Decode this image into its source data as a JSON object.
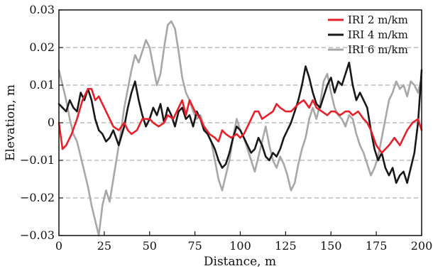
{
  "chart_data": {
    "type": "line",
    "title": "",
    "xlabel": "Distance, m",
    "ylabel": "Elevation, m",
    "xlim": [
      0,
      200
    ],
    "ylim": [
      -0.03,
      0.03
    ],
    "x_ticks": [
      0,
      25,
      50,
      75,
      100,
      125,
      150,
      175,
      200
    ],
    "x_tick_labels": [
      "0",
      "25",
      "50",
      "75",
      "100",
      "125",
      "150",
      "175",
      "200"
    ],
    "y_ticks": [
      -0.03,
      -0.02,
      -0.01,
      0,
      0.01,
      0.02,
      0.03
    ],
    "y_tick_labels": [
      "−0.03",
      "−0.02",
      "−0.01",
      "0",
      "0.01",
      "0.02",
      "0.03"
    ],
    "grid": "horizontal dashed",
    "legend_position": "top-right",
    "series": [
      {
        "name": "IRI 2 m/km",
        "color": "#e8202a",
        "x": [
          0,
          2,
          4,
          7,
          10,
          13,
          16,
          18,
          20,
          22,
          25,
          28,
          30,
          33,
          36,
          38,
          40,
          43,
          46,
          48,
          50,
          52,
          55,
          58,
          60,
          63,
          66,
          68,
          70,
          72,
          75,
          78,
          80,
          83,
          86,
          88,
          90,
          92,
          95,
          98,
          100,
          102,
          105,
          108,
          110,
          112,
          115,
          118,
          120,
          122,
          125,
          128,
          130,
          132,
          135,
          138,
          140,
          142,
          145,
          148,
          150,
          152,
          155,
          158,
          160,
          162,
          165,
          168,
          170,
          172,
          175,
          178,
          180,
          182,
          185,
          188,
          190,
          192,
          195,
          198,
          200
        ],
        "y": [
          0.0,
          -0.007,
          -0.006,
          -0.003,
          0.001,
          0.006,
          0.009,
          0.009,
          0.006,
          0.007,
          0.004,
          0.001,
          -0.001,
          -0.002,
          0.0,
          -0.002,
          -0.003,
          -0.002,
          0.001,
          0.001,
          0.001,
          0.0,
          -0.001,
          0.0,
          0.002,
          0.001,
          0.004,
          0.006,
          0.002,
          0.006,
          0.003,
          0.001,
          -0.001,
          -0.003,
          -0.004,
          -0.005,
          -0.002,
          -0.003,
          -0.004,
          -0.003,
          -0.004,
          -0.003,
          0.0,
          0.003,
          0.003,
          0.001,
          0.002,
          0.003,
          0.005,
          0.004,
          0.003,
          0.003,
          0.004,
          0.005,
          0.006,
          0.004,
          0.006,
          0.004,
          0.003,
          0.002,
          0.003,
          0.003,
          0.002,
          0.003,
          0.003,
          0.002,
          0.003,
          0.001,
          0.0,
          -0.002,
          -0.006,
          -0.008,
          -0.007,
          -0.006,
          -0.004,
          -0.006,
          -0.004,
          -0.002,
          0.0,
          0.001,
          -0.002
        ]
      },
      {
        "name": "IRI 4 m/km",
        "color": "#1a1718",
        "x": [
          0,
          2,
          4,
          6,
          8,
          10,
          12,
          14,
          16,
          18,
          20,
          22,
          24,
          26,
          28,
          30,
          33,
          36,
          38,
          40,
          42,
          44,
          46,
          48,
          50,
          52,
          54,
          56,
          58,
          60,
          62,
          64,
          66,
          68,
          70,
          72,
          74,
          76,
          78,
          80,
          82,
          84,
          86,
          88,
          90,
          92,
          94,
          96,
          98,
          100,
          102,
          104,
          106,
          108,
          110,
          112,
          114,
          116,
          118,
          120,
          122,
          124,
          126,
          128,
          130,
          132,
          134,
          136,
          138,
          140,
          142,
          144,
          146,
          148,
          150,
          152,
          154,
          156,
          158,
          160,
          162,
          164,
          166,
          168,
          170,
          172,
          174,
          176,
          178,
          180,
          182,
          184,
          186,
          188,
          190,
          192,
          194,
          196,
          198,
          200
        ],
        "y": [
          0.005,
          0.004,
          0.003,
          0.006,
          0.004,
          0.003,
          0.008,
          0.006,
          0.009,
          0.006,
          0.001,
          -0.002,
          -0.003,
          -0.005,
          -0.004,
          -0.002,
          -0.006,
          -0.001,
          0.004,
          0.008,
          0.011,
          0.006,
          0.002,
          -0.001,
          0.001,
          0.004,
          0.002,
          0.005,
          0.0,
          0.004,
          0.002,
          -0.001,
          0.003,
          0.004,
          0.001,
          0.002,
          -0.001,
          0.003,
          0.001,
          -0.002,
          -0.003,
          -0.005,
          -0.007,
          -0.01,
          -0.012,
          -0.011,
          -0.008,
          -0.004,
          -0.001,
          -0.002,
          -0.004,
          -0.006,
          -0.008,
          -0.007,
          -0.004,
          -0.006,
          -0.009,
          -0.01,
          -0.008,
          -0.009,
          -0.007,
          -0.004,
          -0.002,
          0.0,
          0.003,
          0.006,
          0.01,
          0.015,
          0.012,
          0.008,
          0.005,
          0.004,
          0.007,
          0.01,
          0.012,
          0.008,
          0.011,
          0.01,
          0.013,
          0.016,
          0.01,
          0.006,
          0.008,
          0.006,
          0.004,
          -0.002,
          -0.007,
          -0.01,
          -0.008,
          -0.012,
          -0.014,
          -0.012,
          -0.016,
          -0.014,
          -0.013,
          -0.016,
          -0.012,
          -0.008,
          0.0,
          0.014
        ]
      },
      {
        "name": "IRI 6 m/km",
        "color": "#a7a7a7",
        "x": [
          0,
          2,
          4,
          6,
          8,
          10,
          12,
          14,
          16,
          18,
          20,
          22,
          24,
          26,
          28,
          30,
          32,
          34,
          36,
          38,
          40,
          42,
          44,
          46,
          48,
          50,
          52,
          54,
          56,
          58,
          60,
          62,
          64,
          66,
          68,
          70,
          72,
          74,
          76,
          78,
          80,
          82,
          84,
          86,
          88,
          90,
          92,
          94,
          96,
          98,
          100,
          102,
          104,
          106,
          108,
          110,
          112,
          114,
          116,
          118,
          120,
          122,
          124,
          126,
          128,
          130,
          132,
          134,
          136,
          138,
          140,
          142,
          144,
          146,
          148,
          150,
          152,
          154,
          156,
          158,
          160,
          162,
          164,
          166,
          168,
          170,
          172,
          174,
          176,
          178,
          180,
          182,
          184,
          186,
          188,
          190,
          192,
          194,
          196,
          198,
          200
        ],
        "y": [
          0.014,
          0.01,
          0.006,
          0.001,
          -0.003,
          -0.005,
          -0.009,
          -0.013,
          -0.017,
          -0.022,
          -0.026,
          -0.03,
          -0.022,
          -0.018,
          -0.021,
          -0.015,
          -0.009,
          -0.003,
          0.004,
          0.009,
          0.014,
          0.018,
          0.016,
          0.019,
          0.022,
          0.02,
          0.015,
          0.01,
          0.013,
          0.02,
          0.026,
          0.027,
          0.025,
          0.019,
          0.012,
          0.008,
          0.006,
          0.003,
          0.001,
          0.002,
          -0.001,
          -0.003,
          -0.005,
          -0.01,
          -0.015,
          -0.018,
          -0.014,
          -0.01,
          -0.004,
          0.001,
          -0.002,
          -0.004,
          -0.007,
          -0.01,
          -0.013,
          -0.009,
          -0.005,
          -0.001,
          -0.006,
          -0.01,
          -0.012,
          -0.009,
          -0.011,
          -0.014,
          -0.018,
          -0.016,
          -0.011,
          -0.007,
          -0.004,
          0.001,
          0.004,
          0.001,
          0.005,
          0.011,
          0.013,
          0.008,
          0.004,
          0.002,
          0.001,
          -0.001,
          0.002,
          0.001,
          -0.003,
          -0.006,
          -0.008,
          -0.011,
          -0.014,
          -0.012,
          -0.009,
          -0.004,
          0.001,
          0.006,
          0.008,
          0.011,
          0.009,
          0.01,
          0.007,
          0.011,
          0.01,
          0.008,
          0.012
        ]
      }
    ]
  }
}
